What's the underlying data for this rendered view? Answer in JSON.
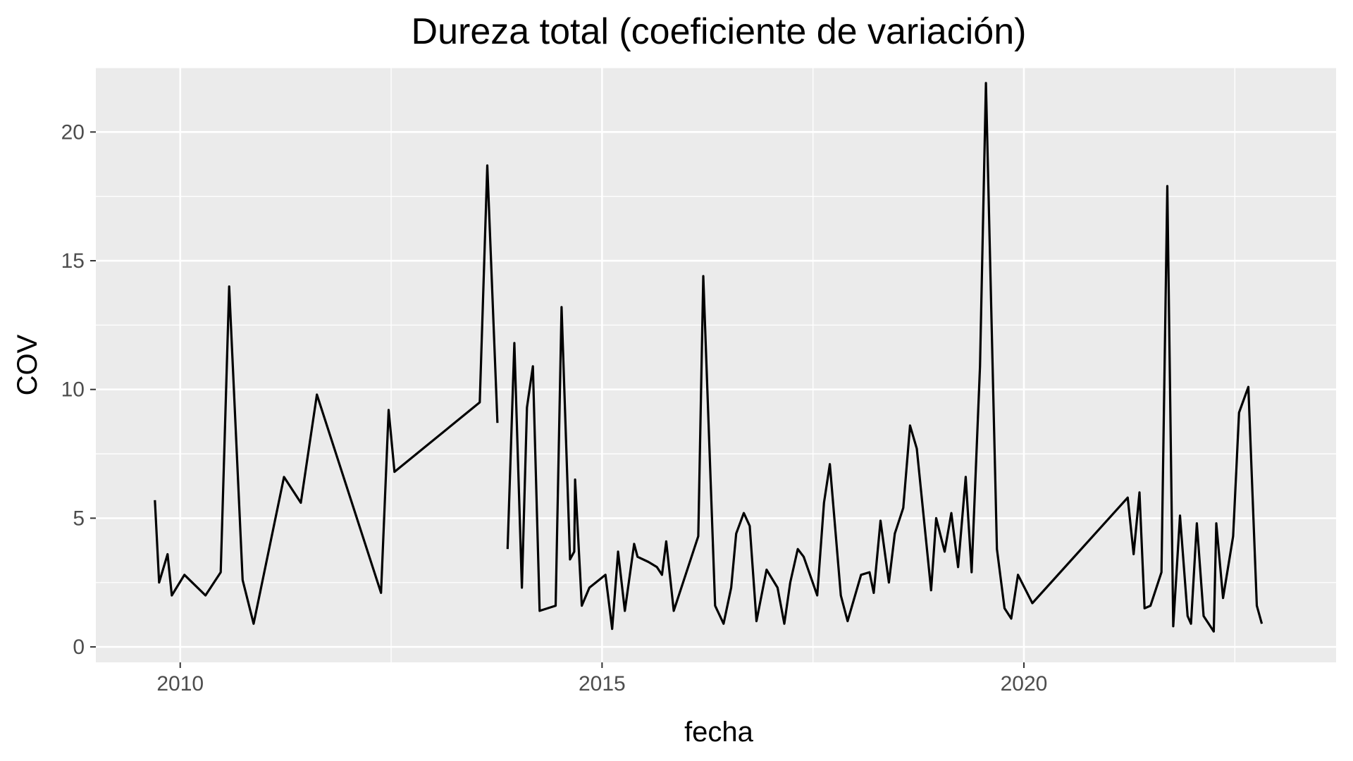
{
  "chart_data": {
    "type": "line",
    "title": "Dureza total (coeficiente de variación)",
    "xlabel": "fecha",
    "ylabel": "COV",
    "xlim": [
      2009.0,
      2023.7
    ],
    "ylim": [
      -0.6,
      22.5
    ],
    "x_ticks": [
      2010,
      2015,
      2020
    ],
    "y_ticks": [
      0,
      5,
      10,
      15,
      20
    ],
    "grid": true,
    "legend": "none",
    "colors": {
      "panel": "#ebebeb",
      "grid": "#ffffff",
      "line": "#000000",
      "tick_text": "#4d4d4d"
    },
    "series": [
      {
        "values_note": "",
        "segments": [
          [
            [
              2009.7,
              5.7
            ],
            [
              2009.75,
              2.5
            ],
            [
              2009.85,
              3.6
            ],
            [
              2009.9,
              2.0
            ],
            [
              2010.05,
              2.8
            ],
            [
              2010.3,
              2.0
            ],
            [
              2010.48,
              2.9
            ],
            [
              2010.58,
              14.0
            ],
            [
              2010.74,
              2.6
            ],
            [
              2010.87,
              0.9
            ],
            [
              2011.23,
              6.6
            ],
            [
              2011.43,
              5.6
            ],
            [
              2011.62,
              9.8
            ],
            [
              2012.38,
              2.1
            ],
            [
              2012.47,
              9.2
            ],
            [
              2012.54,
              6.8
            ],
            [
              2013.55,
              9.5
            ],
            [
              2013.64,
              18.7
            ],
            [
              2013.76,
              8.7
            ]
          ],
          [
            [
              2013.88,
              3.8
            ],
            [
              2013.96,
              11.8
            ],
            [
              2014.05,
              2.3
            ],
            [
              2014.11,
              9.3
            ],
            [
              2014.18,
              10.9
            ],
            [
              2014.26,
              1.4
            ],
            [
              2014.45,
              1.6
            ],
            [
              2014.52,
              13.2
            ],
            [
              2014.62,
              3.4
            ],
            [
              2014.67,
              3.7
            ],
            [
              2014.68,
              6.5
            ],
            [
              2014.76,
              1.6
            ],
            [
              2014.85,
              2.3
            ],
            [
              2015.04,
              2.8
            ],
            [
              2015.12,
              0.7
            ],
            [
              2015.19,
              3.7
            ],
            [
              2015.27,
              1.4
            ],
            [
              2015.38,
              4.0
            ],
            [
              2015.42,
              3.5
            ],
            [
              2015.55,
              3.3
            ],
            [
              2015.65,
              3.1
            ],
            [
              2015.71,
              2.8
            ],
            [
              2015.76,
              4.1
            ],
            [
              2015.85,
              1.4
            ],
            [
              2016.14,
              4.3
            ],
            [
              2016.2,
              14.4
            ],
            [
              2016.34,
              1.6
            ],
            [
              2016.44,
              0.9
            ],
            [
              2016.53,
              2.3
            ],
            [
              2016.59,
              4.4
            ],
            [
              2016.68,
              5.2
            ],
            [
              2016.75,
              4.7
            ],
            [
              2016.83,
              1.0
            ],
            [
              2016.95,
              3.0
            ],
            [
              2017.08,
              2.3
            ],
            [
              2017.16,
              0.9
            ],
            [
              2017.23,
              2.5
            ],
            [
              2017.32,
              3.8
            ],
            [
              2017.39,
              3.5
            ],
            [
              2017.55,
              2.0
            ],
            [
              2017.63,
              5.6
            ],
            [
              2017.7,
              7.1
            ],
            [
              2017.83,
              2.0
            ],
            [
              2017.91,
              1.0
            ],
            [
              2018.07,
              2.8
            ],
            [
              2018.17,
              2.9
            ],
            [
              2018.22,
              2.1
            ],
            [
              2018.3,
              4.9
            ],
            [
              2018.4,
              2.5
            ],
            [
              2018.47,
              4.4
            ],
            [
              2018.57,
              5.4
            ],
            [
              2018.65,
              8.6
            ],
            [
              2018.73,
              7.7
            ],
            [
              2018.9,
              2.2
            ],
            [
              2018.96,
              5.0
            ],
            [
              2019.06,
              3.7
            ],
            [
              2019.14,
              5.2
            ],
            [
              2019.22,
              3.1
            ],
            [
              2019.31,
              6.6
            ],
            [
              2019.38,
              2.9
            ],
            [
              2019.48,
              10.9
            ],
            [
              2019.55,
              21.9
            ],
            [
              2019.68,
              3.8
            ],
            [
              2019.77,
              1.5
            ],
            [
              2019.85,
              1.1
            ],
            [
              2019.93,
              2.8
            ],
            [
              2020.1,
              1.7
            ],
            [
              2021.23,
              5.8
            ],
            [
              2021.3,
              3.6
            ],
            [
              2021.37,
              6.0
            ],
            [
              2021.43,
              1.5
            ],
            [
              2021.5,
              1.6
            ],
            [
              2021.63,
              2.9
            ],
            [
              2021.7,
              17.9
            ],
            [
              2021.77,
              0.8
            ],
            [
              2021.85,
              5.1
            ],
            [
              2021.94,
              1.2
            ],
            [
              2021.98,
              0.9
            ],
            [
              2022.05,
              4.8
            ],
            [
              2022.13,
              1.2
            ],
            [
              2022.25,
              0.6
            ],
            [
              2022.28,
              4.8
            ],
            [
              2022.36,
              1.9
            ],
            [
              2022.48,
              4.3
            ],
            [
              2022.55,
              9.1
            ],
            [
              2022.66,
              10.1
            ],
            [
              2022.76,
              1.6
            ],
            [
              2022.82,
              0.9
            ]
          ]
        ]
      }
    ]
  }
}
